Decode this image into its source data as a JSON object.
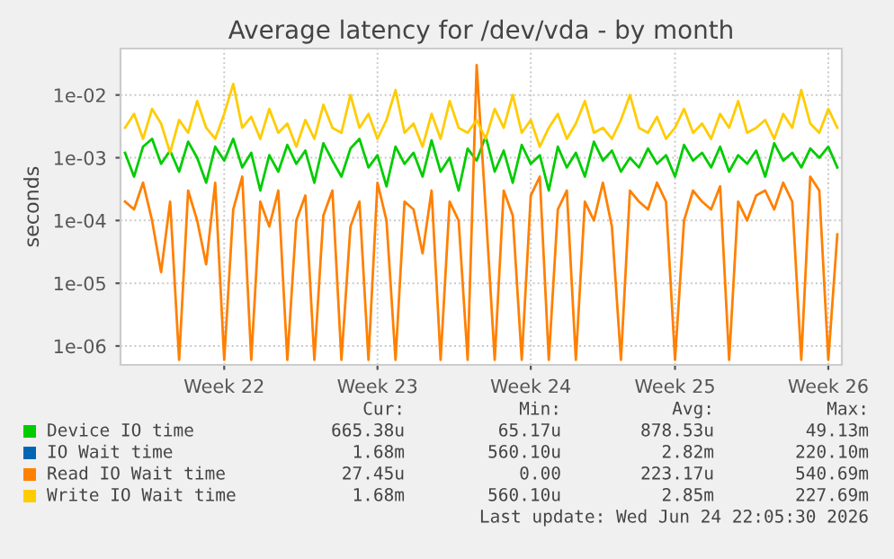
{
  "chart_data": {
    "type": "line",
    "title": "Average latency for /dev/vda - by month",
    "ylabel": "seconds",
    "log": "y",
    "grid": true,
    "legend": "bottom",
    "marker": "none",
    "line_style": "solid",
    "ylim": [
      5e-07,
      0.055
    ],
    "yticks": [
      {
        "value": 1e-06,
        "label": "1e-06"
      },
      {
        "value": 1e-05,
        "label": "1e-05"
      },
      {
        "value": 0.0001,
        "label": "1e-04"
      },
      {
        "value": 0.001,
        "label": "1e-03"
      },
      {
        "value": 0.01,
        "label": "1e-02"
      }
    ],
    "categories": [
      null,
      null,
      null,
      null,
      null,
      null,
      null,
      null,
      null,
      null,
      null,
      "Week 22",
      null,
      null,
      null,
      null,
      null,
      null,
      null,
      null,
      null,
      null,
      null,
      null,
      null,
      null,
      null,
      null,
      "Week 23",
      null,
      null,
      null,
      null,
      null,
      null,
      null,
      null,
      null,
      null,
      null,
      null,
      null,
      null,
      null,
      null,
      "Week 24",
      null,
      null,
      null,
      null,
      null,
      null,
      null,
      null,
      null,
      null,
      null,
      null,
      null,
      null,
      null,
      "Week 25",
      null,
      null,
      null,
      null,
      null,
      null,
      null,
      null,
      null,
      null,
      null,
      null,
      null,
      null,
      null,
      null,
      "Week 26",
      null
    ],
    "series": [
      {
        "name": "Device IO time",
        "color": "#00cc00",
        "values": [
          0.0012,
          0.0005,
          0.0015,
          0.002,
          0.0008,
          0.0013,
          0.0006,
          0.0018,
          0.001,
          0.0004,
          0.0015,
          0.0009,
          0.002,
          0.0007,
          0.0012,
          0.0003,
          0.0011,
          0.0006,
          0.0016,
          0.0008,
          0.0013,
          0.0004,
          0.0017,
          0.0009,
          0.0005,
          0.0014,
          0.002,
          0.0007,
          0.0011,
          0.00035,
          0.0015,
          0.0008,
          0.0012,
          0.0005,
          0.0019,
          0.0006,
          0.001,
          0.0003,
          0.0014,
          0.0009,
          0.0022,
          0.0006,
          0.0013,
          0.0004,
          0.0016,
          0.0008,
          0.0011,
          0.0003,
          0.0015,
          0.0007,
          0.0012,
          0.0005,
          0.0018,
          0.0009,
          0.0013,
          0.0006,
          0.001,
          0.0007,
          0.0014,
          0.0008,
          0.0011,
          0.0005,
          0.0016,
          0.0009,
          0.0012,
          0.0007,
          0.0015,
          0.0006,
          0.0011,
          0.0008,
          0.0013,
          0.0005,
          0.0017,
          0.0009,
          0.0012,
          0.0007,
          0.0014,
          0.001,
          0.0015,
          0.0007
        ]
      },
      {
        "name": "IO Wait time",
        "color": "#0066b3",
        "values": [
          null,
          null,
          null,
          null,
          null,
          null,
          null,
          null,
          null,
          null,
          null,
          null,
          null,
          null,
          null,
          null,
          null,
          null,
          null,
          null,
          null,
          null,
          null,
          null,
          null,
          null,
          null,
          null,
          null,
          null,
          null,
          null,
          null,
          null,
          null,
          null,
          null,
          null,
          null,
          null,
          null,
          null,
          null,
          null,
          null,
          null,
          null,
          null,
          null,
          null,
          null,
          null,
          null,
          null,
          null,
          null,
          null,
          null,
          null,
          null,
          null,
          null,
          null,
          null,
          null,
          null,
          null,
          null,
          null,
          null,
          null,
          null,
          null,
          null,
          null,
          null,
          null,
          null,
          null,
          null
        ]
      },
      {
        "name": "Read IO Wait time",
        "color": "#ff8000",
        "values": [
          0.0002,
          0.00015,
          0.0004,
          0.0001,
          1.5e-05,
          0.0002,
          6e-07,
          0.0003,
          0.0001,
          2e-05,
          0.0004,
          6e-07,
          0.00015,
          0.0005,
          6e-07,
          0.0002,
          8e-05,
          0.0003,
          6e-07,
          0.0001,
          0.00025,
          6e-07,
          0.00012,
          0.0003,
          6e-07,
          8e-05,
          0.0002,
          6e-07,
          0.0004,
          0.0001,
          6e-07,
          0.0002,
          0.00015,
          3e-05,
          0.0003,
          6e-07,
          0.0002,
          0.0001,
          6e-07,
          0.03,
          0.00015,
          6e-07,
          0.0003,
          0.00012,
          6e-07,
          0.00025,
          0.0005,
          6e-07,
          0.00015,
          0.0003,
          6e-07,
          0.0002,
          0.0001,
          0.0004,
          8e-05,
          6e-07,
          0.0003,
          0.0002,
          0.00015,
          0.0004,
          0.0002,
          6e-07,
          0.0001,
          0.0003,
          0.0002,
          0.00015,
          0.00035,
          6e-07,
          0.0002,
          0.0001,
          0.00025,
          0.0003,
          0.00015,
          0.0004,
          0.0002,
          6e-07,
          0.0005,
          0.0003,
          6e-07,
          6e-05
        ]
      },
      {
        "name": "Write IO Wait time",
        "color": "#ffcc00",
        "values": [
          0.003,
          0.005,
          0.002,
          0.006,
          0.0035,
          0.0012,
          0.004,
          0.0025,
          0.008,
          0.003,
          0.002,
          0.005,
          0.015,
          0.003,
          0.0045,
          0.002,
          0.006,
          0.0025,
          0.0035,
          0.0015,
          0.004,
          0.002,
          0.007,
          0.003,
          0.0025,
          0.01,
          0.003,
          0.005,
          0.002,
          0.004,
          0.012,
          0.0025,
          0.0035,
          0.0015,
          0.005,
          0.002,
          0.008,
          0.003,
          0.0025,
          0.004,
          0.002,
          0.006,
          0.003,
          0.01,
          0.0025,
          0.004,
          0.0015,
          0.003,
          0.005,
          0.002,
          0.0035,
          0.008,
          0.0025,
          0.003,
          0.002,
          0.004,
          0.01,
          0.003,
          0.0025,
          0.0045,
          0.002,
          0.003,
          0.006,
          0.0025,
          0.0035,
          0.002,
          0.005,
          0.003,
          0.008,
          0.0025,
          0.003,
          0.004,
          0.002,
          0.005,
          0.003,
          0.012,
          0.0035,
          0.0025,
          0.006,
          0.003
        ]
      }
    ],
    "annotations": [
      "Cur:",
      "Min:",
      "Avg:",
      "Max:",
      "665.38u",
      "65.17u",
      "878.53u",
      "49.13m",
      "1.68m",
      "560.10u",
      "2.82m",
      "220.10m",
      "27.45u",
      "0.00",
      "223.17u",
      "540.69m",
      "1.68m",
      "560.10u",
      "2.85m",
      "227.69m",
      "Last update: Wed Jun 24 22:05:30 2026"
    ]
  }
}
